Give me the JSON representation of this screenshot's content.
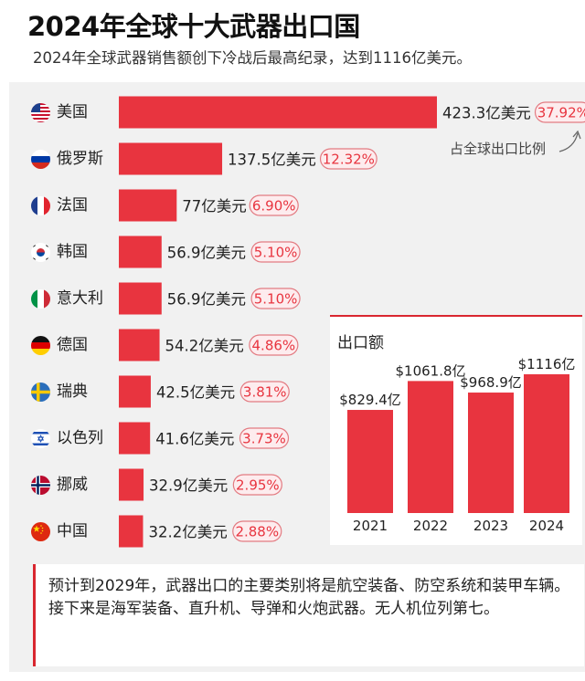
{
  "title": "2024年全球十大武器出口国",
  "subtitle": "2024年全球武器销售额创下冷战后最高纪录，达到1116亿美元。",
  "share_annotation": "占全球出口比例",
  "note": "预计到2029年，武器出口的主要类别将是航空装备、防空系统和装甲车辆。接下来是海军装备、直升机、导弹和火炮武器。无人机位列第七。",
  "colors": {
    "bar": "#e8343f",
    "pill_text": "#e8343f",
    "pill_border": "#e37b82",
    "pill_fill": "#fdecee",
    "panel": "#f1f1f1"
  },
  "chart_data": [
    {
      "type": "bar",
      "orientation": "horizontal",
      "title": "2024年全球十大武器出口国",
      "categories": [
        "美国",
        "俄罗斯",
        "法国",
        "韩国",
        "意大利",
        "德国",
        "瑞典",
        "以色列",
        "挪威",
        "中国"
      ],
      "flag_icons": [
        "usa-flag-icon",
        "russia-flag-icon",
        "france-flag-icon",
        "korea-flag-icon",
        "italy-flag-icon",
        "germany-flag-icon",
        "sweden-flag-icon",
        "israel-flag-icon",
        "norway-flag-icon",
        "china-flag-icon"
      ],
      "values": [
        423.3,
        137.5,
        77,
        56.9,
        56.9,
        54.2,
        42.5,
        41.6,
        32.9,
        32.2
      ],
      "value_labels": [
        "423.3亿美元",
        "137.5亿美元",
        "77亿美元",
        "56.9亿美元",
        "56.9亿美元",
        "54.2亿美元",
        "42.5亿美元",
        "41.6亿美元",
        "32.9亿美元",
        "32.2亿美元"
      ],
      "unit": "亿美元",
      "share_labels": [
        "37.92%",
        "12.32%",
        "6.90%",
        "5.10%",
        "5.10%",
        "4.86%",
        "3.81%",
        "3.73%",
        "2.95%",
        "2.88%"
      ],
      "share_values": [
        37.92,
        12.32,
        6.9,
        5.1,
        5.1,
        4.86,
        3.81,
        3.73,
        2.95,
        2.88
      ]
    },
    {
      "type": "bar",
      "title": "出口额",
      "categories": [
        "2021",
        "2022",
        "2023",
        "2024"
      ],
      "values": [
        829.4,
        1061.8,
        968.9,
        1116
      ],
      "value_labels": [
        "$829.4亿",
        "$1061.8亿",
        "$968.9亿",
        "$1116亿"
      ]
    }
  ]
}
